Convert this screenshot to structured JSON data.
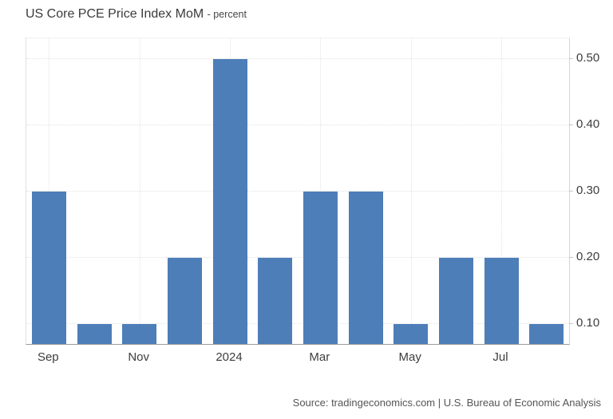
{
  "title": "US Core PCE Price Index MoM",
  "subtitle": "- percent",
  "source": "Source: tradingeconomics.com | U.S. Bureau of Economic Analysis",
  "colors": {
    "bar": "#4D7EB8",
    "grid": "#e3e3e3",
    "bottom_axis": "#9c9c9c",
    "right_axis": "#d4d4d4",
    "text": "#3d3d3d",
    "source_text": "#555555"
  },
  "chart_data": {
    "type": "bar",
    "title": "US Core PCE Price Index MoM",
    "subtitle": "- percent",
    "categories": [
      "Sep",
      "",
      "Nov",
      "",
      "2024",
      "",
      "Mar",
      "",
      "May",
      "",
      "Jul",
      ""
    ],
    "values": [
      0.3,
      0.1,
      0.1,
      0.2,
      0.5,
      0.2,
      0.3,
      0.3,
      0.1,
      0.2,
      0.2,
      0.1
    ],
    "xlabel": "",
    "ylabel": "percent",
    "y_axis_side": "right",
    "y_ticks": [
      0.1,
      0.2,
      0.3,
      0.4,
      0.5
    ],
    "y_tick_labels": [
      "0.10",
      "0.20",
      "0.30",
      "0.40",
      "0.50"
    ],
    "ylim": [
      0.0699,
      0.5314
    ],
    "grid": "dotted",
    "legend_position": "none"
  }
}
